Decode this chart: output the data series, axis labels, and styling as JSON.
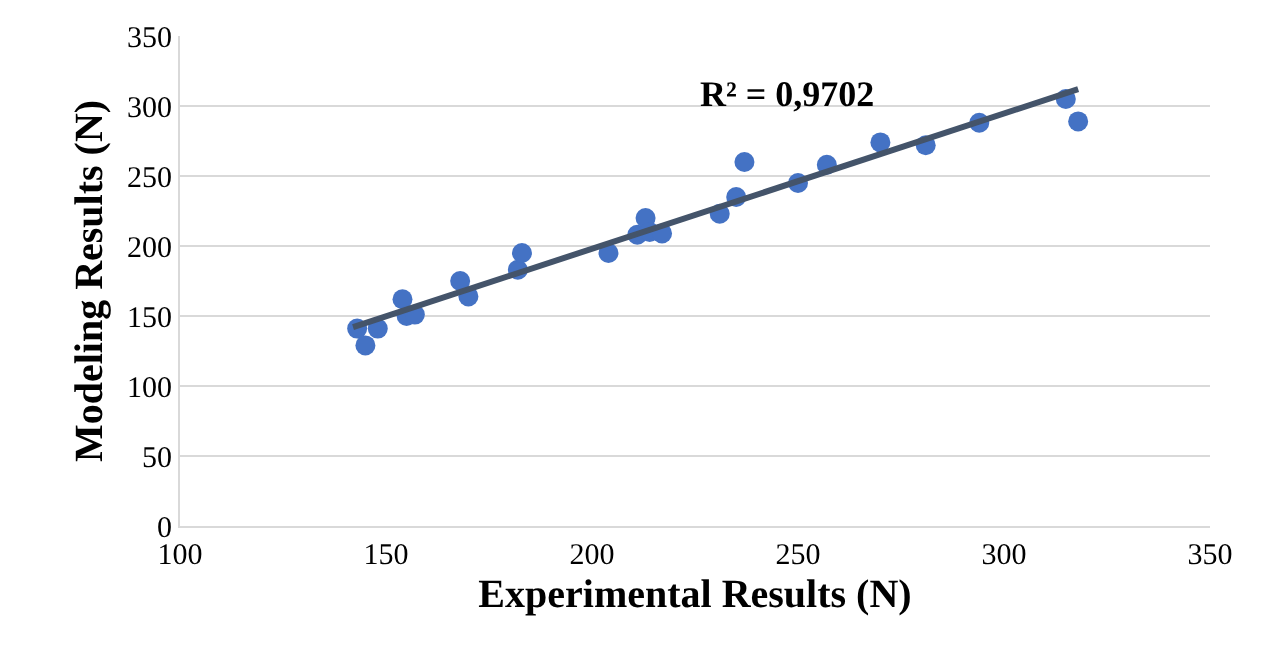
{
  "chart_data": {
    "type": "scatter",
    "xlabel": "Experimental Results (N)",
    "ylabel": "Modeling Results (N)",
    "annotations": [
      "R² = 0,9702"
    ],
    "xlim": [
      100,
      350
    ],
    "xticks": [
      100,
      150,
      200,
      250,
      300,
      350
    ],
    "ylim": [
      0,
      350
    ],
    "yticks": [
      0,
      50,
      100,
      150,
      200,
      250,
      300,
      350
    ],
    "grid": "y",
    "series": [
      {
        "marker": "circle",
        "color": "#4472c4",
        "x": [
          143,
          145,
          148,
          154,
          155,
          157,
          168,
          170,
          182,
          183,
          204,
          211,
          213,
          214,
          217,
          231,
          235,
          237,
          250,
          257,
          270,
          281,
          294,
          315,
          318
        ],
        "values": [
          141,
          129,
          141,
          162,
          150,
          151,
          175,
          164,
          183,
          195,
          195,
          208,
          220,
          210,
          209,
          223,
          235,
          260,
          245,
          258,
          274,
          272,
          288,
          305,
          289
        ]
      },
      {
        "type": "line",
        "color": "#44546a",
        "x": [
          142,
          318
        ],
        "values": [
          142,
          312
        ]
      }
    ]
  }
}
